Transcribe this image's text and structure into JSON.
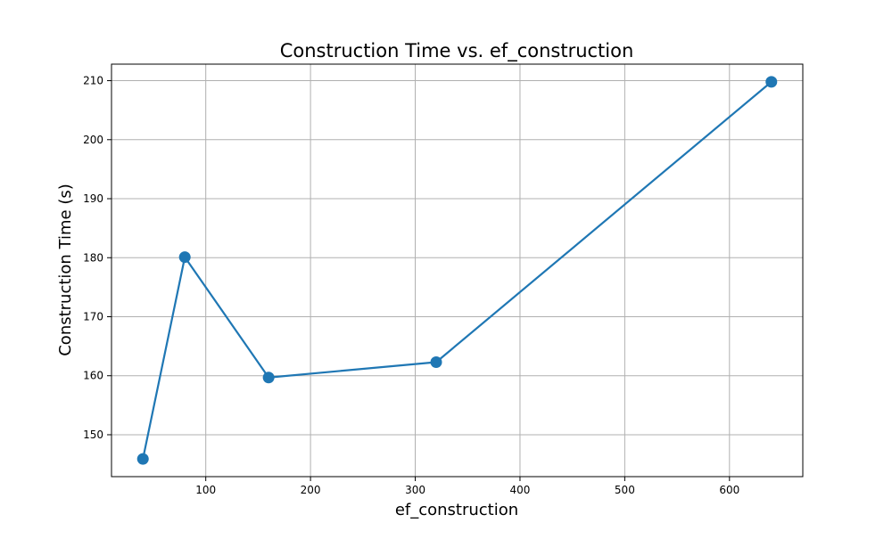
{
  "chart_data": {
    "type": "line",
    "title": "Construction Time vs. ef_construction",
    "xlabel": "ef_construction",
    "ylabel": "Construction Time (s)",
    "x": [
      40,
      80,
      160,
      320,
      640
    ],
    "series": [
      {
        "values": [
          145.9,
          180.1,
          159.7,
          162.3,
          209.8
        ]
      }
    ],
    "xlim": [
      10,
      670
    ],
    "ylim": [
      142.9,
      212.8
    ],
    "xticks": [
      100,
      200,
      300,
      400,
      500,
      600
    ],
    "yticks": [
      150,
      160,
      170,
      180,
      190,
      200,
      210
    ],
    "grid": true,
    "marker": "circle",
    "colors": {
      "line": "#1f77b4"
    }
  }
}
